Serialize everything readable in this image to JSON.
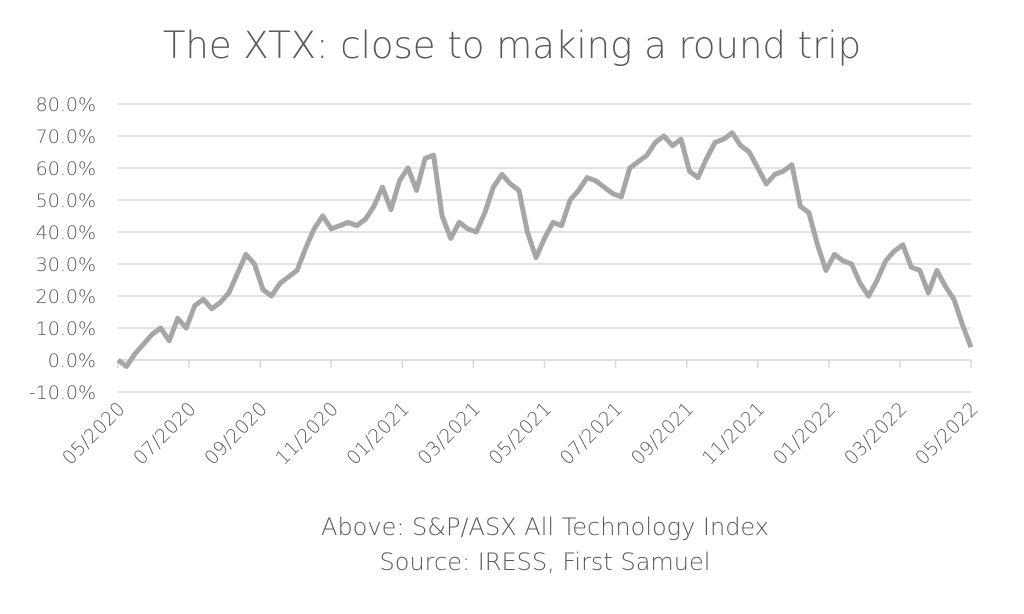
{
  "chart_data": {
    "type": "line",
    "title": "The XTX: close to making a round trip",
    "notes": [
      "Above: S&P/ASX All Technology Index",
      "Source: IRESS, First Samuel"
    ],
    "xlim": [
      "05/2020",
      "05/2022"
    ],
    "xticks": [
      "05/2020",
      "07/2020",
      "09/2020",
      "11/2020",
      "01/2021",
      "03/2021",
      "05/2021",
      "07/2021",
      "09/2021",
      "11/2021",
      "01/2022",
      "03/2022",
      "05/2022"
    ],
    "ylim": [
      -10,
      80
    ],
    "yticks": [
      {
        "value": 80,
        "label": "80.0%"
      },
      {
        "value": 70,
        "label": "70.0%"
      },
      {
        "value": 60,
        "label": "60.0%"
      },
      {
        "value": 50,
        "label": "50.0%"
      },
      {
        "value": 40,
        "label": "40.0%"
      },
      {
        "value": 30,
        "label": "30.0%"
      },
      {
        "value": 20,
        "label": "20.0%"
      },
      {
        "value": 10,
        "label": "10.0%"
      },
      {
        "value": 0,
        "label": "0.0%"
      },
      {
        "value": -10,
        "label": "-10.0%"
      }
    ],
    "grid": true,
    "series": [
      {
        "color": "#a6a6a6",
        "values": [
          0,
          -2,
          2,
          5,
          8,
          10,
          6,
          13,
          10,
          17,
          19,
          16,
          18,
          21,
          27,
          33,
          30,
          22,
          20,
          24,
          26,
          28,
          35,
          41,
          45,
          41,
          42,
          43,
          42,
          44,
          48,
          54,
          47,
          56,
          60,
          53,
          63,
          64,
          45,
          38,
          43,
          41,
          40,
          46,
          54,
          58,
          55,
          53,
          40,
          32,
          38,
          43,
          42,
          50,
          53,
          57,
          56,
          54,
          52,
          51,
          60,
          62,
          64,
          68,
          70,
          67,
          69,
          59,
          57,
          63,
          68,
          69,
          71,
          67,
          65,
          60,
          55,
          58,
          59,
          61,
          48,
          46,
          36,
          28,
          33,
          31,
          30,
          24,
          20,
          25,
          31,
          34,
          36,
          29,
          28,
          21,
          28,
          23,
          19,
          11,
          4
        ]
      }
    ]
  }
}
